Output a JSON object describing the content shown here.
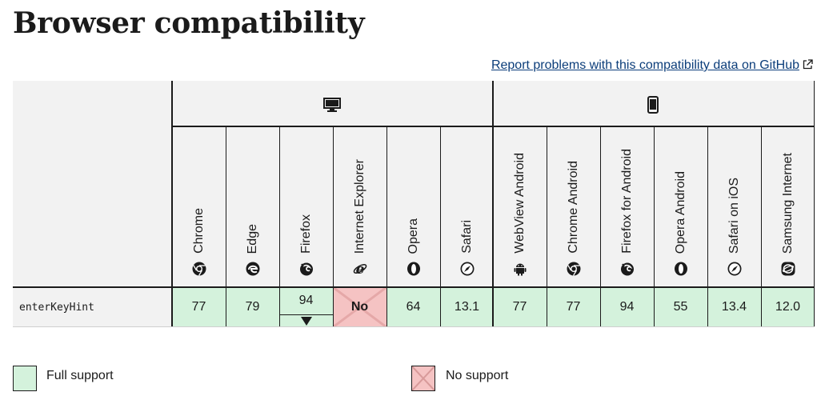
{
  "page": {
    "title": "Browser compatibility",
    "report_link": "Report problems with this compatibility data on GitHub"
  },
  "platforms": [
    {
      "name": "desktop",
      "icon": "desktop-icon"
    },
    {
      "name": "mobile",
      "icon": "mobile-icon"
    }
  ],
  "browsers": [
    {
      "name": "Chrome",
      "icon": "chrome-icon",
      "value": "77",
      "support": "full"
    },
    {
      "name": "Edge",
      "icon": "edge-icon",
      "value": "79",
      "support": "full"
    },
    {
      "name": "Firefox",
      "icon": "firefox-icon",
      "value": "94",
      "support": "full",
      "expandable": true
    },
    {
      "name": "Internet Explorer",
      "icon": "ie-icon",
      "value": "No",
      "support": "none"
    },
    {
      "name": "Opera",
      "icon": "opera-icon",
      "value": "64",
      "support": "full"
    },
    {
      "name": "Safari",
      "icon": "safari-icon",
      "value": "13.1",
      "support": "full"
    },
    {
      "name": "WebView Android",
      "icon": "android-icon",
      "value": "77",
      "support": "full"
    },
    {
      "name": "Chrome Android",
      "icon": "chrome-icon",
      "value": "77",
      "support": "full"
    },
    {
      "name": "Firefox for Android",
      "icon": "firefox-icon",
      "value": "94",
      "support": "full"
    },
    {
      "name": "Opera Android",
      "icon": "opera-icon",
      "value": "55",
      "support": "full"
    },
    {
      "name": "Safari on iOS",
      "icon": "safari-icon",
      "value": "13.4",
      "support": "full"
    },
    {
      "name": "Samsung Internet",
      "icon": "samsung-icon",
      "value": "12.0",
      "support": "full"
    }
  ],
  "feature": {
    "name": "enterKeyHint"
  },
  "legend": {
    "full_support": "Full support",
    "no_support": "No support"
  },
  "colors": {
    "full": "#d4f2dc",
    "none": "#f5c3c3",
    "header_bg": "#f2f2f2",
    "link": "#0b3d7a"
  }
}
